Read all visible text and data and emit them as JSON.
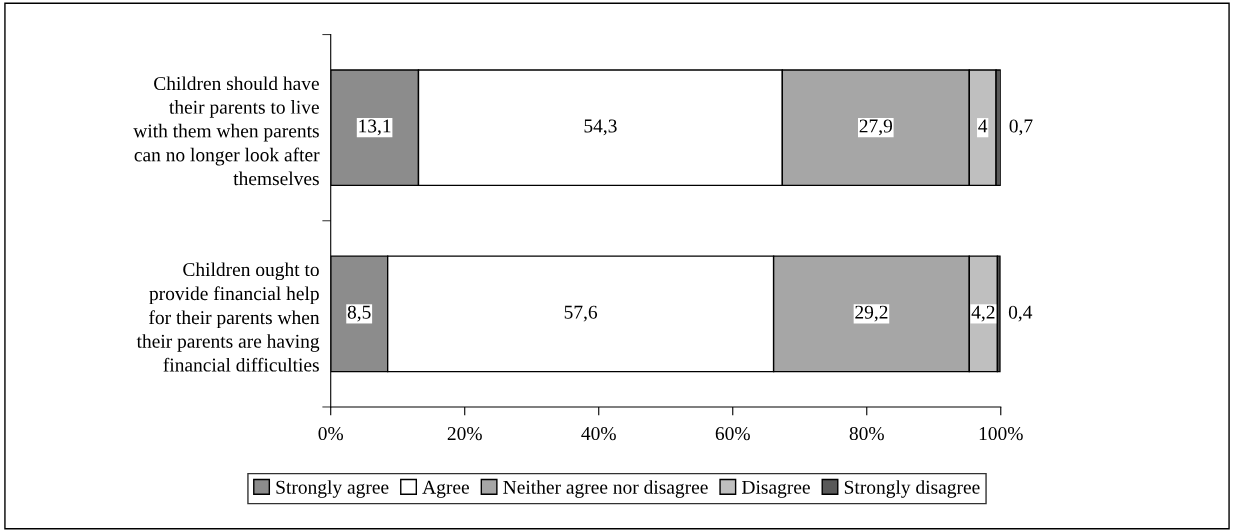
{
  "chart_data": {
    "type": "bar",
    "orientation": "horizontal",
    "stacked": true,
    "categories": [
      "Children should have their parents to live with them when parents can no longer look after themselves",
      "Children ought to provide financial help for their parents when their parents are having financial difficulties"
    ],
    "series": [
      {
        "name": "Strongly agree",
        "color": "#8c8c8c",
        "values": [
          13.1,
          8.5
        ],
        "value_labels": [
          "13,1",
          "8,5"
        ]
      },
      {
        "name": "Agree",
        "color": "#ffffff",
        "values": [
          54.3,
          57.6
        ],
        "value_labels": [
          "54,3",
          "57,6"
        ]
      },
      {
        "name": "Neither agree nor disagree",
        "color": "#a6a6a6",
        "values": [
          27.9,
          29.2
        ],
        "value_labels": [
          "27,9",
          "29,2"
        ]
      },
      {
        "name": "Disagree",
        "color": "#bfbfbf",
        "values": [
          4,
          4.2
        ],
        "value_labels": [
          "4",
          "4,2"
        ]
      },
      {
        "name": "Strongly disagree",
        "color": "#595959",
        "values": [
          0.7,
          0.4
        ],
        "value_labels": [
          "0,7",
          "0,4"
        ]
      }
    ],
    "xlim": [
      0,
      100
    ],
    "xticks": [
      {
        "value": 0,
        "label": "0%"
      },
      {
        "value": 20,
        "label": "20%"
      },
      {
        "value": 40,
        "label": "40%"
      },
      {
        "value": 60,
        "label": "60%"
      },
      {
        "value": 80,
        "label": "80%"
      },
      {
        "value": 100,
        "label": "100%"
      }
    ],
    "grid": false,
    "legend": "bottom"
  }
}
